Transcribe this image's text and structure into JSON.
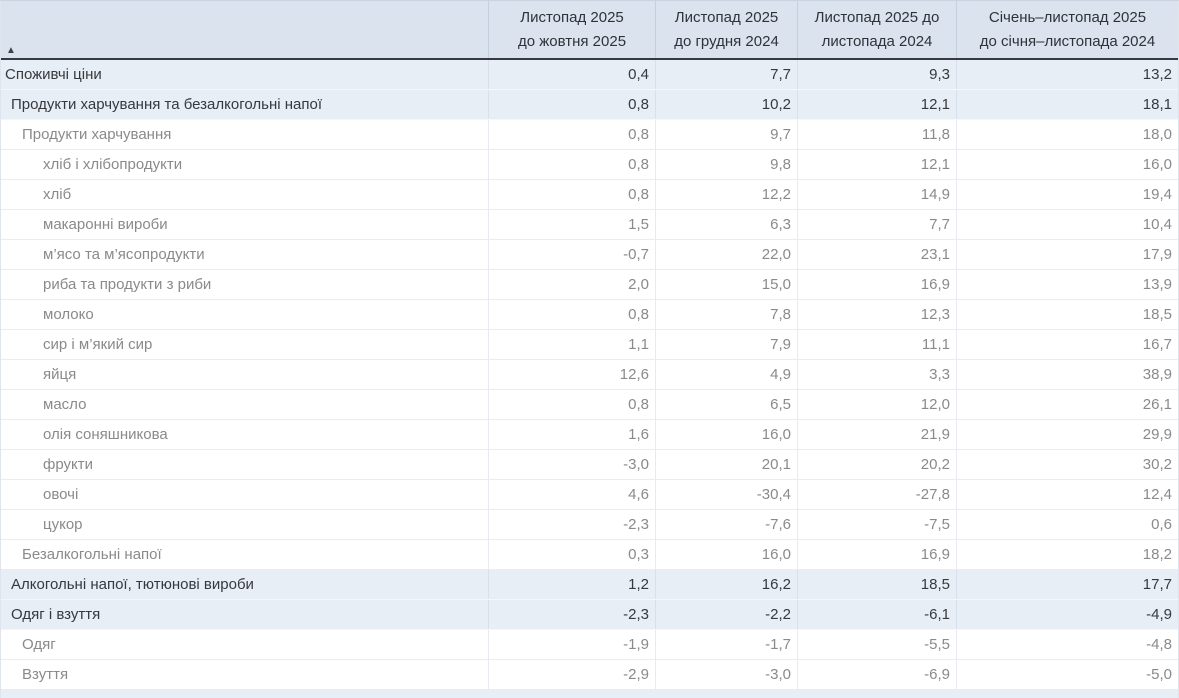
{
  "table": {
    "sort_icon": "▲",
    "columns": [
      {
        "line1": "Листопад 2025",
        "line2": "до жовтня 2025"
      },
      {
        "line1": "Листопад 2025",
        "line2": "до грудня 2024"
      },
      {
        "line1": "Листопад 2025 до",
        "line2": "листопада 2024"
      },
      {
        "line1": "Січень–листопад 2025",
        "line2": "до січня–листопада 2024"
      }
    ],
    "rows": [
      {
        "label": "Споживчі ціни",
        "level": 0,
        "highlight": true,
        "values": [
          "0,4",
          "7,7",
          "9,3",
          "13,2"
        ]
      },
      {
        "label": "Продукти харчування та безалкогольні напої",
        "level": 1,
        "highlight": true,
        "values": [
          "0,8",
          "10,2",
          "12,1",
          "18,1"
        ]
      },
      {
        "label": "Продукти харчування",
        "level": 2,
        "highlight": false,
        "values": [
          "0,8",
          "9,7",
          "11,8",
          "18,0"
        ]
      },
      {
        "label": "хліб і хлібопродукти",
        "level": 3,
        "highlight": false,
        "values": [
          "0,8",
          "9,8",
          "12,1",
          "16,0"
        ]
      },
      {
        "label": "хліб",
        "level": 3,
        "highlight": false,
        "values": [
          "0,8",
          "12,2",
          "14,9",
          "19,4"
        ]
      },
      {
        "label": "макаронні вироби",
        "level": 3,
        "highlight": false,
        "values": [
          "1,5",
          "6,3",
          "7,7",
          "10,4"
        ]
      },
      {
        "label": "м’ясо та м’ясопродукти",
        "level": 3,
        "highlight": false,
        "values": [
          "-0,7",
          "22,0",
          "23,1",
          "17,9"
        ]
      },
      {
        "label": "риба та продукти з риби",
        "level": 3,
        "highlight": false,
        "values": [
          "2,0",
          "15,0",
          "16,9",
          "13,9"
        ]
      },
      {
        "label": "молоко",
        "level": 3,
        "highlight": false,
        "values": [
          "0,8",
          "7,8",
          "12,3",
          "18,5"
        ]
      },
      {
        "label": "сир і м’який сир",
        "level": 3,
        "highlight": false,
        "values": [
          "1,1",
          "7,9",
          "11,1",
          "16,7"
        ]
      },
      {
        "label": "яйця",
        "level": 3,
        "highlight": false,
        "values": [
          "12,6",
          "4,9",
          "3,3",
          "38,9"
        ]
      },
      {
        "label": "масло",
        "level": 3,
        "highlight": false,
        "values": [
          "0,8",
          "6,5",
          "12,0",
          "26,1"
        ]
      },
      {
        "label": "олія соняшникова",
        "level": 3,
        "highlight": false,
        "values": [
          "1,6",
          "16,0",
          "21,9",
          "29,9"
        ]
      },
      {
        "label": "фрукти",
        "level": 3,
        "highlight": false,
        "values": [
          "-3,0",
          "20,1",
          "20,2",
          "30,2"
        ]
      },
      {
        "label": "овочі",
        "level": 3,
        "highlight": false,
        "values": [
          "4,6",
          "-30,4",
          "-27,8",
          "12,4"
        ]
      },
      {
        "label": "цукор",
        "level": 3,
        "highlight": false,
        "values": [
          "-2,3",
          "-7,6",
          "-7,5",
          "0,6"
        ]
      },
      {
        "label": "Безалкогольні напої",
        "level": 2,
        "highlight": false,
        "values": [
          "0,3",
          "16,0",
          "16,9",
          "18,2"
        ]
      },
      {
        "label": "Алкогольні напої, тютюнові вироби",
        "level": 1,
        "highlight": true,
        "values": [
          "1,2",
          "16,2",
          "18,5",
          "17,7"
        ]
      },
      {
        "label": "Одяг і взуття",
        "level": 1,
        "highlight": true,
        "values": [
          "-2,3",
          "-2,2",
          "-6,1",
          "-4,9"
        ]
      },
      {
        "label": "Одяг",
        "level": 2,
        "highlight": false,
        "values": [
          "-1,9",
          "-1,7",
          "-5,5",
          "-4,8"
        ]
      },
      {
        "label": "Взуття",
        "level": 2,
        "highlight": false,
        "values": [
          "-2,9",
          "-3,0",
          "-6,9",
          "-5,0"
        ]
      }
    ]
  },
  "colors": {
    "header_bg": "#dae3ee",
    "header_bottom_border": "#343a41",
    "highlight_row_bg": "#e8eef5",
    "row_divider": "#e9edf2",
    "column_divider_data": "#e7ebf1",
    "column_divider_header": "#c5d0de",
    "text_header": "#2e3338",
    "text_highlight_row": "#36393d",
    "text_normal_row": "#8a8a8a"
  }
}
